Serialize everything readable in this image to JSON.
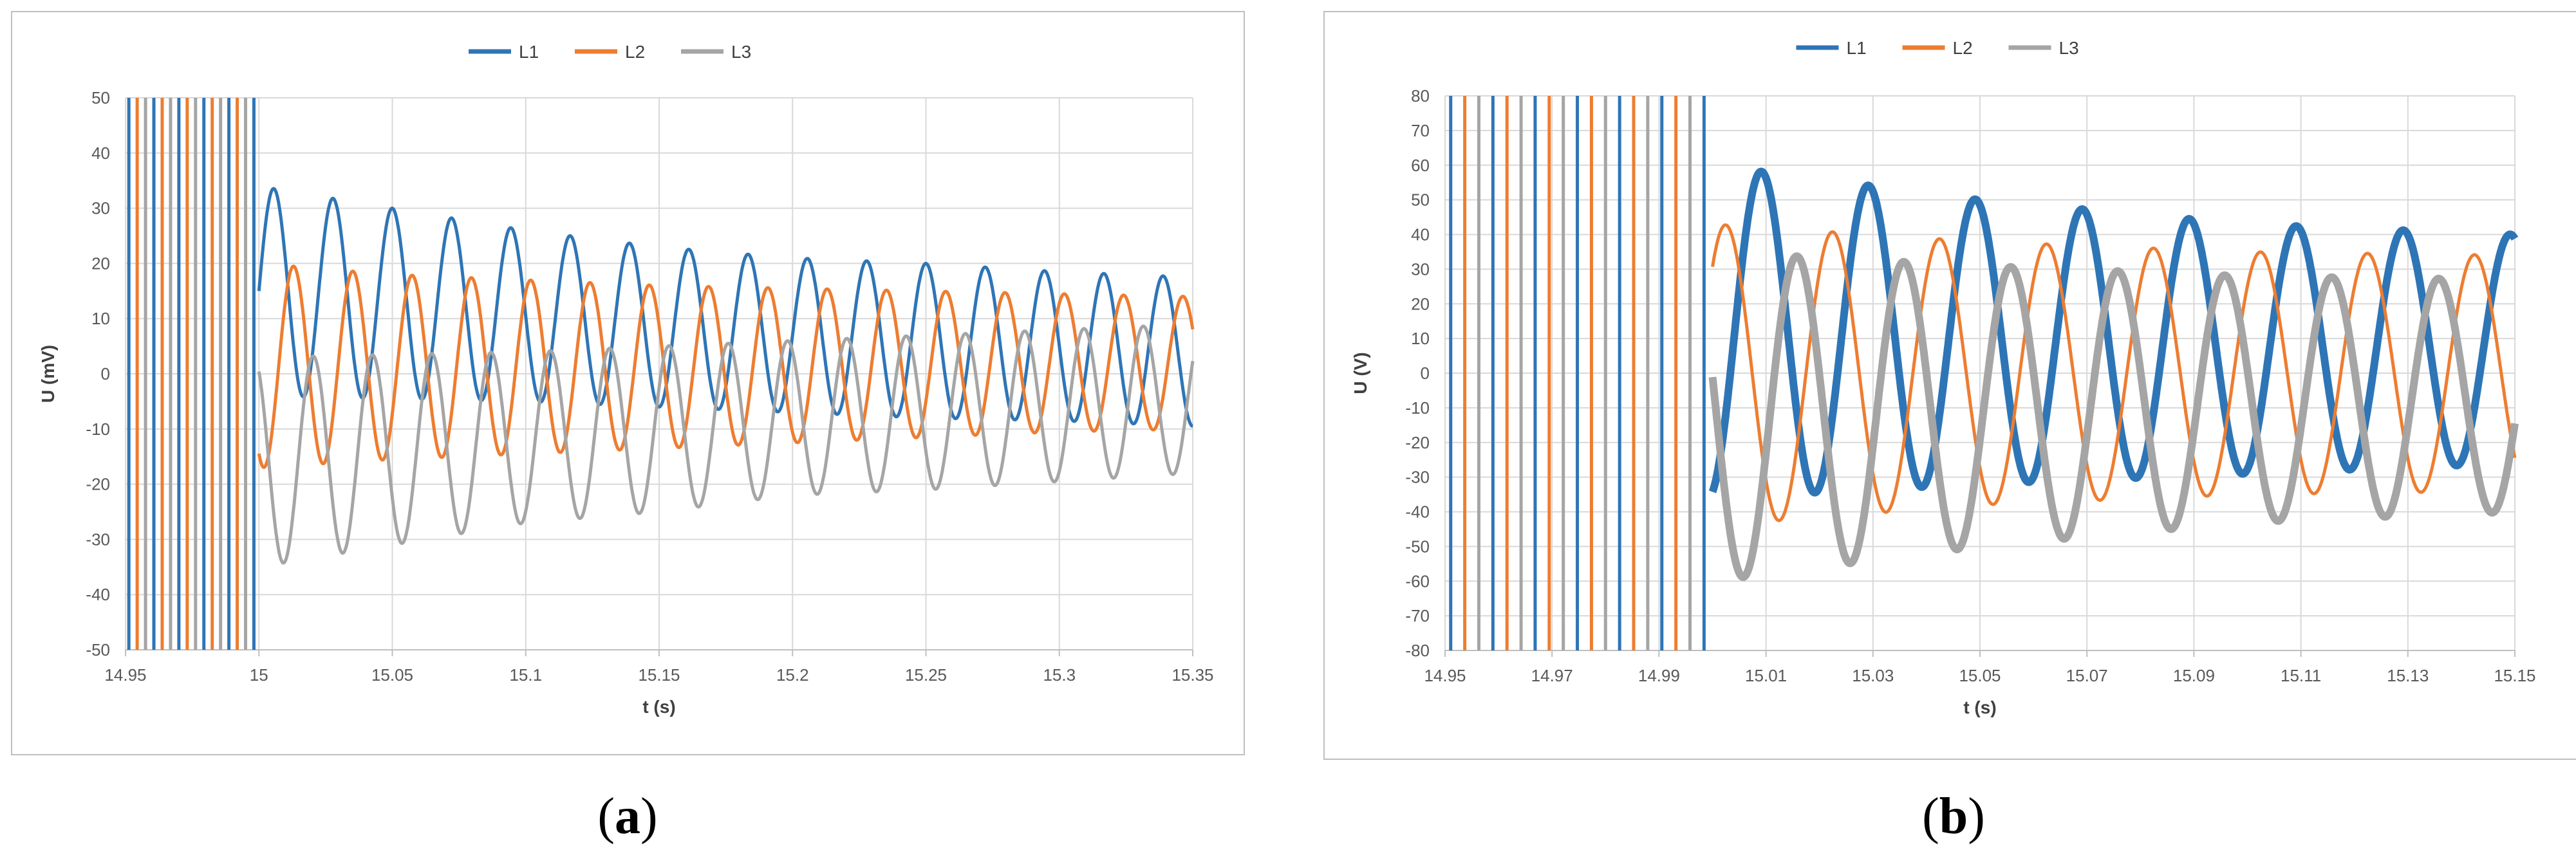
{
  "colors": {
    "L1": "#2E75B6",
    "L2": "#ED7D31",
    "L3": "#A5A5A5",
    "grid": "#D9D9D9",
    "frame": "#BFBFBF"
  },
  "chart_data": [
    {
      "type": "line",
      "panel_label": {
        "open": "(",
        "letter": "a",
        "close": ")"
      },
      "xlabel": "t (s)",
      "ylabel": "U (mV)",
      "xlim": [
        14.95,
        15.35
      ],
      "ylim": [
        -50,
        50
      ],
      "x_ticks": [
        "14.95",
        "15",
        "15.05",
        "15.1",
        "15.15",
        "15.2",
        "15.25",
        "15.3",
        "15.35"
      ],
      "y_ticks": [
        "50",
        "40",
        "30",
        "20",
        "10",
        "0",
        "-10",
        "-20",
        "-30",
        "-40",
        "-50"
      ],
      "legend": "top-center",
      "grid": true,
      "series": [
        {
          "name": "L1",
          "transient_start": 15.0,
          "x": [
            15.0,
            15.05,
            15.1,
            15.15,
            15.2,
            15.25,
            15.3,
            15.35
          ],
          "peak_max": [
            34,
            30,
            26,
            23,
            21,
            20,
            18.5,
            17.5
          ],
          "peak_min": [
            -4,
            -4.5,
            -5,
            -6,
            -7,
            -8,
            -8.5,
            -9.5
          ]
        },
        {
          "name": "L2",
          "transient_start": 15.0,
          "x": [
            15.0,
            15.05,
            15.1,
            15.15,
            15.2,
            15.25,
            15.3,
            15.35
          ],
          "peak_max": [
            20,
            18,
            17,
            16,
            15.5,
            15,
            14.5,
            14
          ],
          "peak_min": [
            -17,
            -15.5,
            -14.5,
            -13.5,
            -12.5,
            -11.5,
            -10.5,
            -10
          ]
        },
        {
          "name": "L3",
          "transient_start": 15.0,
          "x": [
            15.0,
            15.05,
            15.1,
            15.15,
            15.2,
            15.25,
            15.3,
            15.35
          ],
          "peak_max": [
            3,
            3.5,
            4,
            5,
            6,
            7,
            8,
            9
          ],
          "peak_min": [
            -35,
            -31,
            -27,
            -25,
            -22,
            -21,
            -19.5,
            -18
          ]
        }
      ],
      "frequency_hz": 45,
      "pre_transient": "dense vertical spikes spanning full range (14.95–15)"
    },
    {
      "type": "line",
      "panel_label": {
        "open": "(",
        "letter": "b",
        "close": ")"
      },
      "xlabel": "t (s)",
      "ylabel": "U (V)",
      "xlim": [
        14.95,
        15.15
      ],
      "ylim": [
        -80,
        80
      ],
      "x_ticks": [
        "14.95",
        "14.97",
        "14.99",
        "15.01",
        "15.03",
        "15.05",
        "15.07",
        "15.09",
        "15.11",
        "15.13",
        "15.15"
      ],
      "y_ticks": [
        "80",
        "70",
        "60",
        "50",
        "40",
        "30",
        "20",
        "10",
        "0",
        "-10",
        "-20",
        "-30",
        "-40",
        "-50",
        "-60",
        "-70",
        "-80"
      ],
      "legend": "top-center",
      "grid": true,
      "series": [
        {
          "name": "L1",
          "transient_start": 15.0,
          "x": [
            15.0,
            15.05,
            15.1,
            15.15
          ],
          "peak_max": [
            60,
            50,
            43,
            40
          ],
          "peak_min": [
            -36,
            -32,
            -29,
            -26
          ],
          "band_width": [
            10,
            5,
            3,
            2
          ]
        },
        {
          "name": "L2",
          "transient_start": 15.0,
          "x": [
            15.0,
            15.05,
            15.1,
            15.15
          ],
          "peak_max": [
            43,
            38,
            35,
            34
          ],
          "peak_min": [
            -44,
            -38,
            -35,
            -34
          ]
        },
        {
          "name": "L3",
          "transient_start": 15.0,
          "x": [
            15.0,
            15.05,
            15.1,
            15.15
          ],
          "peak_max": [
            35,
            31,
            28,
            27
          ],
          "peak_min": [
            -60,
            -50,
            -43,
            -40
          ],
          "band_width": [
            10,
            5,
            3,
            2
          ]
        }
      ],
      "frequency_hz": 50,
      "pre_transient": "dense vertical spikes spanning full range (14.95–15)"
    }
  ]
}
